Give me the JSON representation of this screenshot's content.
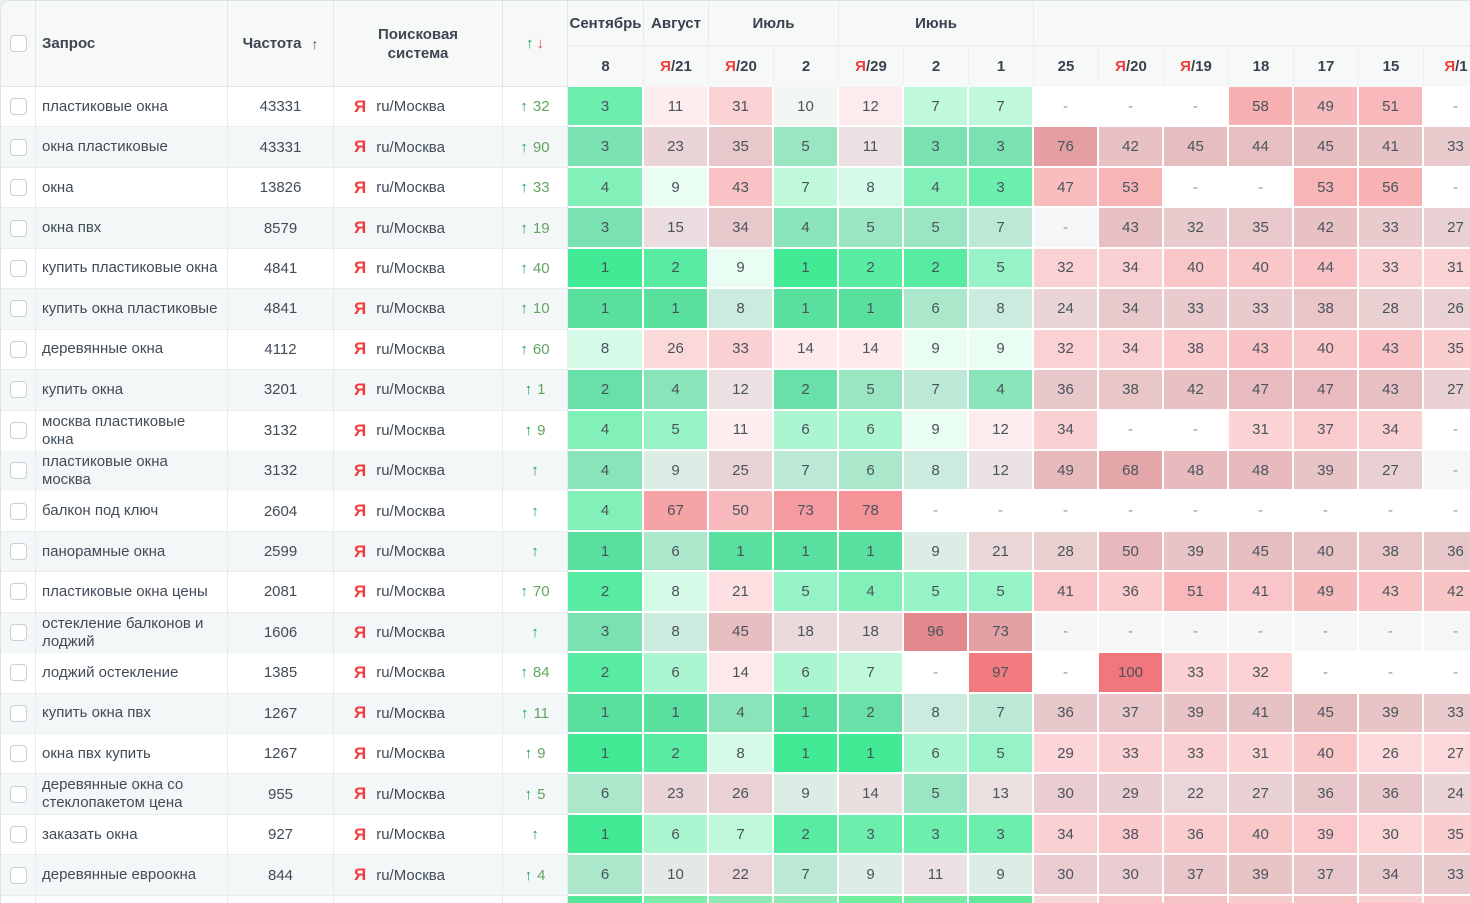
{
  "table": {
    "header": {
      "query_label": "Запрос",
      "frequency_label": "Частота",
      "frequency_sort_icon": "↑",
      "search_engine_label": "Поисковая система",
      "change_up_icon": "↑",
      "change_down_icon": "↓"
    },
    "months": [
      {
        "label": "Сентябрь",
        "cols": 1
      },
      {
        "label": "Август",
        "cols": 1
      },
      {
        "label": "Июль",
        "cols": 2
      },
      {
        "label": "Июнь",
        "cols": 3
      },
      {
        "label": "",
        "cols": 7
      }
    ],
    "dates": [
      {
        "ya": false,
        "day": "8"
      },
      {
        "ya": true,
        "day": "21"
      },
      {
        "ya": true,
        "day": "20"
      },
      {
        "ya": false,
        "day": "2"
      },
      {
        "ya": true,
        "day": "29"
      },
      {
        "ya": false,
        "day": "2"
      },
      {
        "ya": false,
        "day": "1"
      },
      {
        "ya": false,
        "day": "25"
      },
      {
        "ya": true,
        "day": "20"
      },
      {
        "ya": true,
        "day": "19"
      },
      {
        "ya": false,
        "day": "18"
      },
      {
        "ya": false,
        "day": "17"
      },
      {
        "ya": false,
        "day": "15"
      },
      {
        "ya": true,
        "day": "1"
      }
    ],
    "engine": {
      "icon": "Я",
      "region": "ru/Москва"
    },
    "rows": [
      {
        "query": "пластиковые окна",
        "frequency": "43331",
        "change": "32",
        "positions": [
          "3",
          "11",
          "31",
          "10",
          "12",
          "7",
          "7",
          "-",
          "-",
          "-",
          "58",
          "49",
          "51",
          "-"
        ]
      },
      {
        "query": "окна пластиковые",
        "frequency": "43331",
        "change": "90",
        "positions": [
          "3",
          "23",
          "35",
          "5",
          "11",
          "3",
          "3",
          "76",
          "42",
          "45",
          "44",
          "45",
          "41",
          "33"
        ]
      },
      {
        "query": "окна",
        "frequency": "13826",
        "change": "33",
        "positions": [
          "4",
          "9",
          "43",
          "7",
          "8",
          "4",
          "3",
          "47",
          "53",
          "-",
          "-",
          "53",
          "56",
          "-"
        ]
      },
      {
        "query": "окна пвх",
        "frequency": "8579",
        "change": "19",
        "positions": [
          "3",
          "15",
          "34",
          "4",
          "5",
          "5",
          "7",
          "-",
          "43",
          "32",
          "35",
          "42",
          "33",
          "27"
        ]
      },
      {
        "query": "купить пластиковые окна",
        "frequency": "4841",
        "change": "40",
        "positions": [
          "1",
          "2",
          "9",
          "1",
          "2",
          "2",
          "5",
          "32",
          "34",
          "40",
          "40",
          "44",
          "33",
          "31"
        ]
      },
      {
        "query": "купить окна пластиковые",
        "frequency": "4841",
        "change": "10",
        "positions": [
          "1",
          "1",
          "8",
          "1",
          "1",
          "6",
          "8",
          "24",
          "34",
          "33",
          "33",
          "38",
          "28",
          "26"
        ]
      },
      {
        "query": "деревянные окна",
        "frequency": "4112",
        "change": "60",
        "positions": [
          "8",
          "26",
          "33",
          "14",
          "14",
          "9",
          "9",
          "32",
          "34",
          "38",
          "43",
          "40",
          "43",
          "35"
        ]
      },
      {
        "query": "купить окна",
        "frequency": "3201",
        "change": "1",
        "positions": [
          "2",
          "4",
          "12",
          "2",
          "5",
          "7",
          "4",
          "36",
          "38",
          "42",
          "47",
          "47",
          "43",
          "27"
        ]
      },
      {
        "query": "москва пластиковые окна",
        "frequency": "3132",
        "change": "9",
        "positions": [
          "4",
          "5",
          "11",
          "6",
          "6",
          "9",
          "12",
          "34",
          "-",
          "-",
          "31",
          "37",
          "34",
          "-"
        ]
      },
      {
        "query": "пластиковые окна москва",
        "frequency": "3132",
        "change": "",
        "positions": [
          "4",
          "9",
          "25",
          "7",
          "6",
          "8",
          "12",
          "49",
          "68",
          "48",
          "48",
          "39",
          "27",
          "-"
        ]
      },
      {
        "query": "балкон под ключ",
        "frequency": "2604",
        "change": "",
        "positions": [
          "4",
          "67",
          "50",
          "73",
          "78",
          "-",
          "-",
          "-",
          "-",
          "-",
          "-",
          "-",
          "-",
          "-"
        ]
      },
      {
        "query": "панорамные окна",
        "frequency": "2599",
        "change": "",
        "positions": [
          "1",
          "6",
          "1",
          "1",
          "1",
          "9",
          "21",
          "28",
          "50",
          "39",
          "45",
          "40",
          "38",
          "36"
        ]
      },
      {
        "query": "пластиковые окна цены",
        "frequency": "2081",
        "change": "70",
        "positions": [
          "2",
          "8",
          "21",
          "5",
          "4",
          "5",
          "5",
          "41",
          "36",
          "51",
          "41",
          "49",
          "43",
          "42"
        ]
      },
      {
        "query": "остекление балконов и лоджий",
        "frequency": "1606",
        "change": "",
        "positions": [
          "3",
          "8",
          "45",
          "18",
          "18",
          "96",
          "73",
          "-",
          "-",
          "-",
          "-",
          "-",
          "-",
          "-"
        ]
      },
      {
        "query": "лоджий остекление",
        "frequency": "1385",
        "change": "84",
        "positions": [
          "2",
          "6",
          "14",
          "6",
          "7",
          "-",
          "97",
          "-",
          "100",
          "33",
          "32",
          "-",
          "-",
          "-"
        ]
      },
      {
        "query": "купить окна пвх",
        "frequency": "1267",
        "change": "11",
        "positions": [
          "1",
          "1",
          "4",
          "1",
          "2",
          "8",
          "7",
          "36",
          "37",
          "39",
          "41",
          "45",
          "39",
          "33"
        ]
      },
      {
        "query": "окна пвх купить",
        "frequency": "1267",
        "change": "9",
        "positions": [
          "1",
          "2",
          "8",
          "1",
          "1",
          "6",
          "5",
          "29",
          "33",
          "33",
          "31",
          "40",
          "26",
          "27"
        ]
      },
      {
        "query": "деревянные окна со стеклопакетом цена",
        "frequency": "955",
        "change": "5",
        "positions": [
          "6",
          "23",
          "26",
          "9",
          "14",
          "5",
          "13",
          "30",
          "29",
          "22",
          "27",
          "36",
          "36",
          "24"
        ]
      },
      {
        "query": "заказать окна",
        "frequency": "927",
        "change": "",
        "positions": [
          "1",
          "6",
          "7",
          "2",
          "3",
          "3",
          "3",
          "34",
          "38",
          "36",
          "40",
          "39",
          "30",
          "35"
        ]
      },
      {
        "query": "деревянные евроокна",
        "frequency": "844",
        "change": "4",
        "positions": [
          "6",
          "10",
          "22",
          "7",
          "9",
          "11",
          "9",
          "30",
          "30",
          "37",
          "39",
          "37",
          "34",
          "33"
        ]
      }
    ],
    "partial_row_colors": [
      "#55e89b",
      "#7deca9",
      "#90eab5",
      "#90eab5",
      "#72ec9f",
      "#76eba2",
      "#63e99a",
      "#f5d8d5",
      "#f7c7c6",
      "#f5c3c2",
      "#f7cdcc",
      "#f5c3c2",
      "#f7d0cf",
      "#f7c7c6"
    ],
    "colors": {
      "green_base": "#42ea96",
      "red_base": "#f2777c",
      "neutral_10": "#f2f7f4",
      "change_green": "#12a262",
      "change_red": "#e8494c",
      "yandex_red": "#f43b3b",
      "header_bg": "#f7f9f9",
      "even_row_bg": "#f3f7f8",
      "even_overlay": "#a9b6ba",
      "text": "#414c57"
    }
  }
}
